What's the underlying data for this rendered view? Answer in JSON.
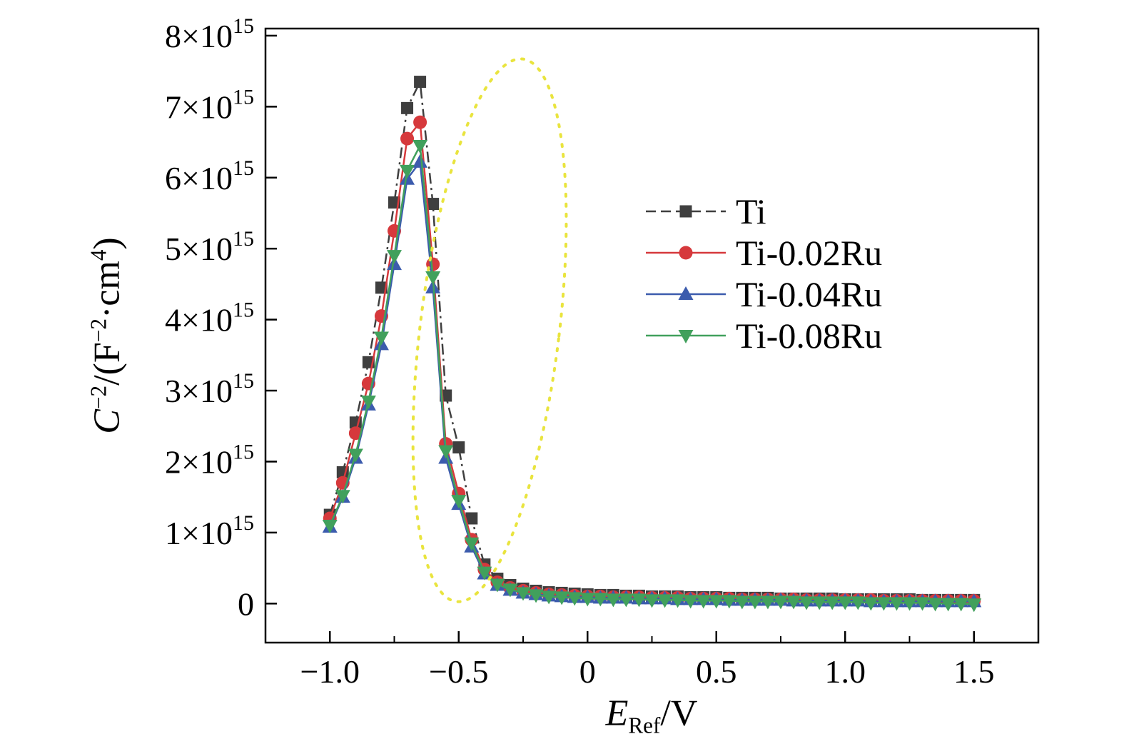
{
  "figure": {
    "background": "#ffffff"
  },
  "chart_data": {
    "type": "line",
    "title": "",
    "xlabel_parts": [
      {
        "t": "E",
        "s": "i"
      },
      {
        "t": "Ref",
        "s": "sub"
      },
      {
        "t": "/V",
        "s": "n"
      }
    ],
    "ylabel_parts": [
      {
        "t": "C",
        "s": "i"
      },
      {
        "t": "−2",
        "s": "sup"
      },
      {
        "t": "/(F",
        "s": "n"
      },
      {
        "t": "−2",
        "s": "sup"
      },
      {
        "t": "·cm",
        "s": "n"
      },
      {
        "t": "4",
        "s": "sup"
      },
      {
        "t": ")",
        "s": "n"
      }
    ],
    "xlim": [
      -1.25,
      1.75
    ],
    "ylim": [
      -0.55,
      8.1
    ],
    "y_unit_scale": "values are in units of 10^15 F^-2*cm^4",
    "x_ticks": [
      {
        "v": -1.0,
        "label": "−1.0"
      },
      {
        "v": -0.5,
        "label": "−0.5"
      },
      {
        "v": 0,
        "label": "0"
      },
      {
        "v": 0.5,
        "label": "0.5"
      },
      {
        "v": 1.0,
        "label": "1.0"
      },
      {
        "v": 1.5,
        "label": "1.5"
      }
    ],
    "y_ticks": [
      {
        "v": 0,
        "m": "0",
        "e": ""
      },
      {
        "v": 1,
        "m": "1×10",
        "e": "15"
      },
      {
        "v": 2,
        "m": "2×10",
        "e": "15"
      },
      {
        "v": 3,
        "m": "3×10",
        "e": "15"
      },
      {
        "v": 4,
        "m": "4×10",
        "e": "15"
      },
      {
        "v": 5,
        "m": "5×10",
        "e": "15"
      },
      {
        "v": 6,
        "m": "6×10",
        "e": "15"
      },
      {
        "v": 7,
        "m": "7×10",
        "e": "15"
      },
      {
        "v": 8,
        "m": "8×10",
        "e": "15"
      }
    ],
    "x": [
      -1.0,
      -0.95,
      -0.9,
      -0.85,
      -0.8,
      -0.75,
      -0.7,
      -0.65,
      -0.6,
      -0.55,
      -0.5,
      -0.45,
      -0.4,
      -0.35,
      -0.3,
      -0.25,
      -0.2,
      -0.15,
      -0.1,
      -0.05,
      0,
      0.05,
      0.1,
      0.15,
      0.2,
      0.25,
      0.3,
      0.35,
      0.4,
      0.45,
      0.5,
      0.55,
      0.6,
      0.65,
      0.7,
      0.75,
      0.8,
      0.85,
      0.9,
      0.95,
      1.0,
      1.05,
      1.1,
      1.15,
      1.2,
      1.25,
      1.3,
      1.35,
      1.4,
      1.45,
      1.5
    ],
    "series": [
      {
        "name": "Ti",
        "color": "#3f3f3f",
        "marker": "square",
        "line": "dashdot",
        "values": [
          1.25,
          1.85,
          2.55,
          3.4,
          4.45,
          5.65,
          6.98,
          7.35,
          5.63,
          2.93,
          2.2,
          1.2,
          0.55,
          0.35,
          0.26,
          0.21,
          0.18,
          0.16,
          0.15,
          0.14,
          0.13,
          0.12,
          0.12,
          0.11,
          0.11,
          0.1,
          0.1,
          0.1,
          0.09,
          0.09,
          0.09,
          0.08,
          0.08,
          0.08,
          0.08,
          0.07,
          0.07,
          0.07,
          0.07,
          0.07,
          0.06,
          0.06,
          0.06,
          0.06,
          0.06,
          0.06,
          0.05,
          0.05,
          0.05,
          0.05,
          0.05
        ]
      },
      {
        "name": "Ti-0.02Ru",
        "color": "#d6393c",
        "marker": "circle",
        "line": "solid",
        "values": [
          1.2,
          1.7,
          2.4,
          3.1,
          4.05,
          5.25,
          6.55,
          6.78,
          4.78,
          2.25,
          1.55,
          0.9,
          0.48,
          0.3,
          0.22,
          0.18,
          0.15,
          0.13,
          0.12,
          0.11,
          0.1,
          0.1,
          0.09,
          0.09,
          0.09,
          0.08,
          0.08,
          0.08,
          0.07,
          0.07,
          0.07,
          0.07,
          0.06,
          0.06,
          0.06,
          0.06,
          0.06,
          0.05,
          0.05,
          0.05,
          0.05,
          0.05,
          0.05,
          0.04,
          0.04,
          0.04,
          0.04,
          0.04,
          0.04,
          0.04,
          0.04
        ]
      },
      {
        "name": "Ti-0.04Ru",
        "color": "#3c5cad",
        "marker": "triangle-up",
        "line": "solid",
        "values": [
          1.08,
          1.5,
          2.05,
          2.8,
          3.65,
          4.78,
          5.98,
          6.22,
          4.45,
          2.05,
          1.4,
          0.8,
          0.42,
          0.26,
          0.19,
          0.15,
          0.13,
          0.11,
          0.1,
          0.09,
          0.09,
          0.08,
          0.08,
          0.08,
          0.07,
          0.07,
          0.07,
          0.06,
          0.06,
          0.06,
          0.06,
          0.05,
          0.05,
          0.05,
          0.05,
          0.05,
          0.04,
          0.04,
          0.04,
          0.04,
          0.04,
          0.04,
          0.03,
          0.03,
          0.03,
          0.03,
          0.03,
          0.03,
          0.03,
          0.03,
          0.03
        ]
      },
      {
        "name": "Ti-0.08Ru",
        "color": "#41a05c",
        "marker": "triangle-down",
        "line": "solid",
        "values": [
          1.1,
          1.52,
          2.1,
          2.85,
          3.75,
          4.9,
          6.1,
          6.45,
          4.6,
          2.15,
          1.45,
          0.85,
          0.44,
          0.27,
          0.2,
          0.15,
          0.12,
          0.1,
          0.09,
          0.08,
          0.07,
          0.07,
          0.06,
          0.06,
          0.06,
          0.05,
          0.05,
          0.05,
          0.04,
          0.04,
          0.04,
          0.04,
          0.03,
          0.03,
          0.03,
          0.03,
          0.03,
          0.02,
          0.02,
          0.02,
          0.02,
          0.02,
          0.01,
          0.01,
          0.01,
          0.01,
          0.01,
          0,
          0,
          0,
          -0.01
        ]
      }
    ],
    "annotation": {
      "type": "ellipse",
      "cx": -0.38,
      "cy": 3.85,
      "rx": 0.27,
      "ry": 3.85,
      "rotation_deg": 7,
      "color": "#e9e43e",
      "style": "dotted"
    },
    "legend": {
      "position": "inside-upper-right"
    }
  }
}
